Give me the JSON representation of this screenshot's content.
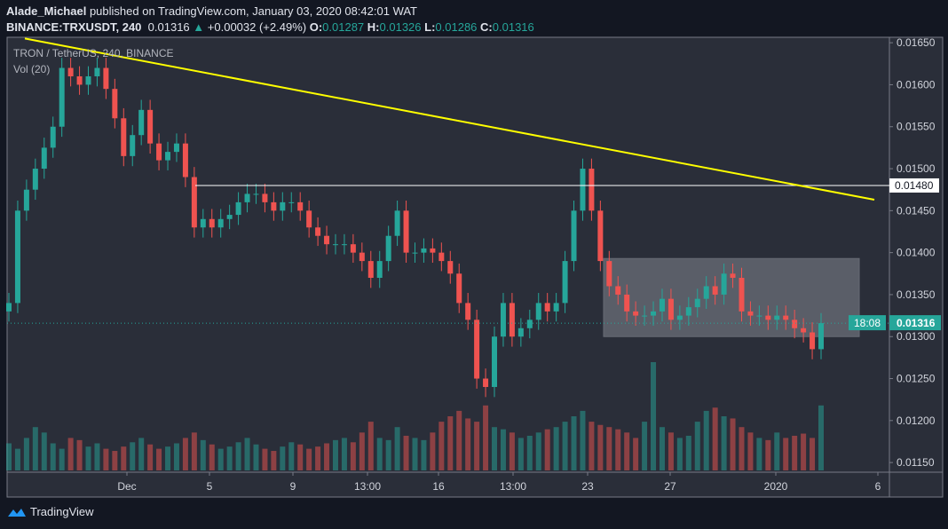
{
  "header": {
    "author": "Alade_Michael",
    "published": "published on TradingView.com, January 03, 2020 08:42:01 WAT",
    "symbol": "BINANCE:TRXUSDT, 240",
    "last": "0.01316",
    "change": "+0.00032 (+2.49%)",
    "o_label": "O:",
    "o": "0.01287",
    "h_label": "H:",
    "h": "0.01326",
    "l_label": "L:",
    "l": "0.01286",
    "c_label": "C:",
    "c": "0.01316"
  },
  "legend": {
    "title": "TRON / TetherUS, 240, BINANCE",
    "vol": "Vol (20)"
  },
  "footer": {
    "brand": "TradingView"
  },
  "colors": {
    "up": "#26a69a",
    "down": "#ef5350",
    "trend": "#ffff00",
    "bg": "#2a2e39"
  },
  "chart_data": {
    "type": "candlestick",
    "price_ticks": [
      "0.01650",
      "0.01600",
      "0.01550",
      "0.01500",
      "0.01450",
      "0.01400",
      "0.01350",
      "0.01300",
      "0.01250",
      "0.01200",
      "0.01150"
    ],
    "ylim": [
      0.011385,
      0.016565
    ],
    "time_ticks": [
      "Dec",
      "5",
      "9",
      "13:00",
      "16",
      "13:00",
      "23",
      "27",
      "2020",
      "6"
    ],
    "closes": [
      0.0134,
      0.0145,
      0.01475,
      0.015,
      0.01525,
      0.0155,
      0.0162,
      0.0161,
      0.016,
      0.0161,
      0.0162,
      0.01595,
      0.0156,
      0.01515,
      0.0154,
      0.0157,
      0.0153,
      0.0151,
      0.0152,
      0.0153,
      0.0149,
      0.0143,
      0.0144,
      0.0143,
      0.0144,
      0.01445,
      0.0146,
      0.0147,
      0.0147,
      0.0146,
      0.0145,
      0.0146,
      0.0146,
      0.0145,
      0.0143,
      0.0142,
      0.0141,
      0.0141,
      0.0141,
      0.014,
      0.0139,
      0.0137,
      0.0139,
      0.0142,
      0.0145,
      0.014,
      0.014,
      0.01405,
      0.014,
      0.0139,
      0.01375,
      0.0134,
      0.0132,
      0.0125,
      0.0124,
      0.013,
      0.0134,
      0.013,
      0.0131,
      0.0132,
      0.0134,
      0.0133,
      0.0134,
      0.0139,
      0.0145,
      0.015,
      0.0145,
      0.0139,
      0.0136,
      0.0135,
      0.0133,
      0.01325,
      0.01325,
      0.0133,
      0.01345,
      0.0132,
      0.01325,
      0.01335,
      0.01345,
      0.0136,
      0.0135,
      0.01375,
      0.0137,
      0.0133,
      0.01325,
      0.01325,
      0.0132,
      0.01325,
      0.0132,
      0.0131,
      0.01305,
      0.01285,
      0.01316
    ],
    "volumes": [
      25,
      20,
      30,
      40,
      35,
      25,
      20,
      30,
      28,
      22,
      25,
      20,
      18,
      22,
      26,
      30,
      24,
      20,
      22,
      25,
      30,
      35,
      28,
      24,
      20,
      22,
      26,
      30,
      24,
      20,
      18,
      22,
      26,
      24,
      20,
      22,
      25,
      28,
      30,
      26,
      35,
      45,
      30,
      28,
      40,
      32,
      30,
      28,
      35,
      45,
      50,
      55,
      48,
      45,
      60,
      40,
      38,
      35,
      30,
      32,
      35,
      38,
      40,
      45,
      50,
      55,
      45,
      42,
      40,
      38,
      35,
      30,
      45,
      100,
      40,
      35,
      30,
      32,
      45,
      55,
      58,
      50,
      48,
      40,
      35,
      30,
      28,
      35,
      30,
      32,
      34,
      30,
      60
    ],
    "horizontal_level": "0.01480",
    "trendline_prices": [
      0.01655,
      0.01463
    ],
    "range_box": [
      0.013,
      0.01393
    ],
    "last_price_label": "0.01316",
    "countdown": "18:08"
  }
}
